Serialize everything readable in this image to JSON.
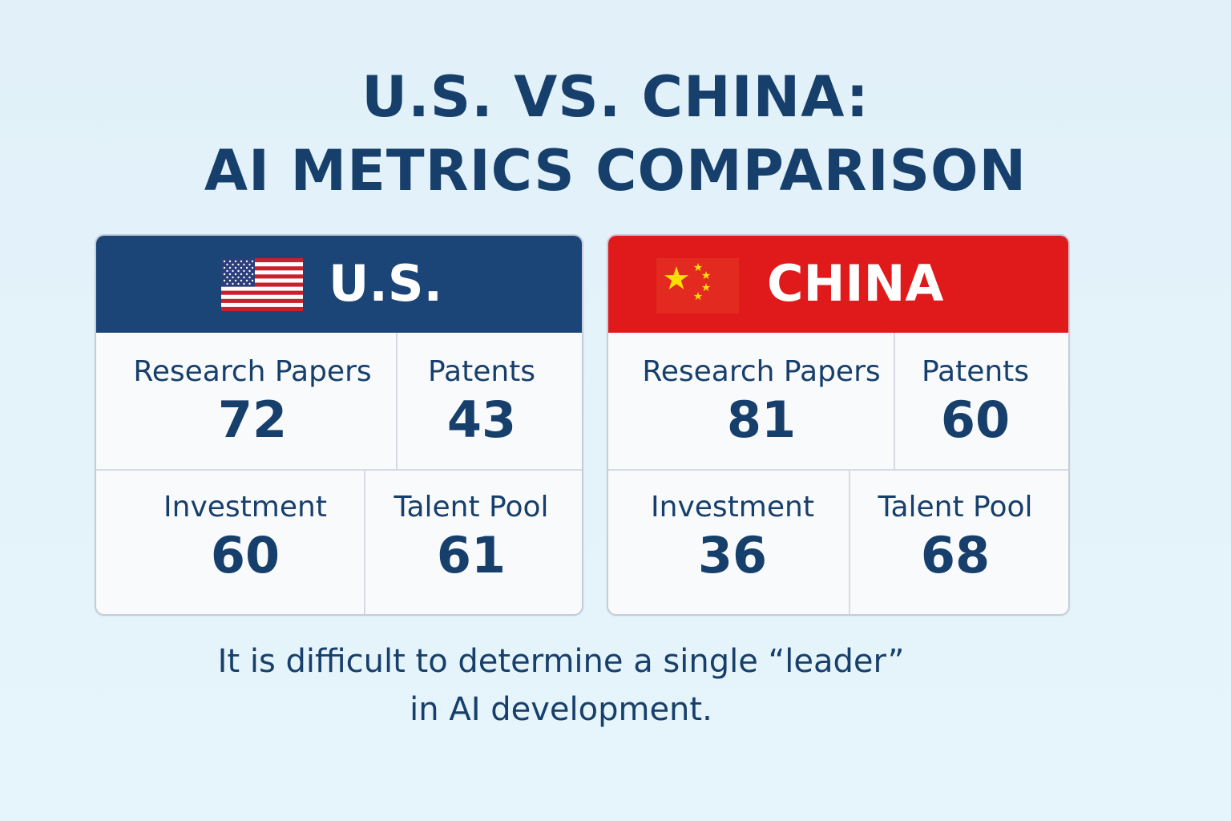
{
  "title": {
    "line1": "U.S. VS. CHINA:",
    "line2": "AI METRICS COMPARISON"
  },
  "us": {
    "name": "U.S.",
    "flag_icon": "us-flag-icon",
    "header_color": "#1b4577",
    "metrics": {
      "research_papers": {
        "label": "Research Papers",
        "value": "72"
      },
      "patents": {
        "label": "Patents",
        "value": "43"
      },
      "investment": {
        "label": "Investment",
        "value": "60"
      },
      "talent_pool": {
        "label": "Talent Pool",
        "value": "61"
      }
    }
  },
  "china": {
    "name": "CHINA",
    "flag_icon": "china-flag-icon",
    "header_color": "#e0191b",
    "metrics": {
      "research_papers": {
        "label": "Research Papers",
        "value": "81"
      },
      "patents": {
        "label": "Patents",
        "value": "60"
      },
      "investment": {
        "label": "Investment",
        "value": "36"
      },
      "talent_pool": {
        "label": "Talent Pool",
        "value": "68"
      }
    }
  },
  "footnote": {
    "line1": "It is difficult to determine a single “leader”",
    "line2": "in AI development."
  }
}
